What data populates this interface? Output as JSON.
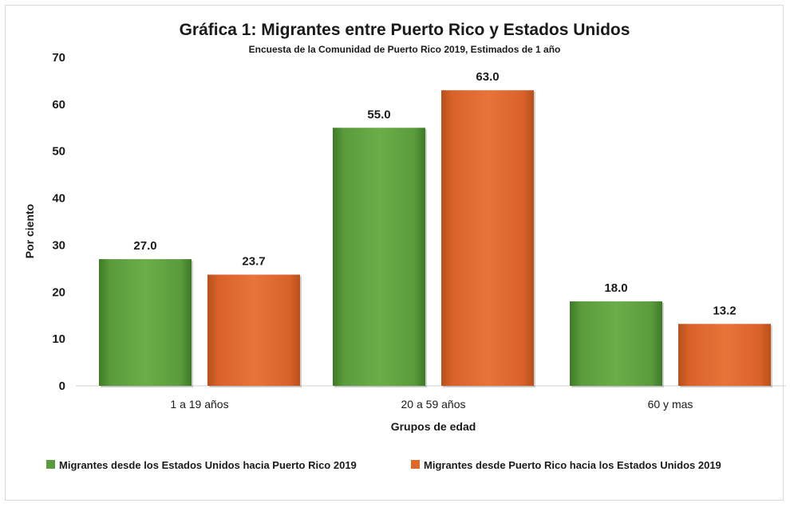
{
  "chart_data": {
    "type": "bar",
    "title": "Gráfica 1: Migrantes entre Puerto Rico y Estados Unidos",
    "subtitle": "Encuesta de la Comunidad de Puerto Rico 2019, Estimados de 1 año",
    "xlabel": "Grupos de edad",
    "ylabel": "Por ciento",
    "ylim": [
      0,
      70
    ],
    "yticks": [
      0,
      10,
      20,
      30,
      40,
      50,
      60,
      70
    ],
    "grid": false,
    "legend_position": "bottom",
    "categories": [
      "1 a 19 años",
      "20 a 59 años",
      "60 y mas"
    ],
    "series": [
      {
        "name": "Migrantes desde los Estados Unidos hacia Puerto Rico 2019",
        "values": [
          27.0,
          55.0,
          18.0
        ],
        "labels": [
          "27.0",
          "55.0",
          "18.0"
        ],
        "color": "#5a9b3c"
      },
      {
        "name": "Migrantes desde Puerto Rico hacia los Estados Unidos 2019",
        "values": [
          23.7,
          63.0,
          13.2
        ],
        "labels": [
          "23.7",
          "63.0",
          "13.2"
        ],
        "color": "#e0692a"
      }
    ]
  }
}
